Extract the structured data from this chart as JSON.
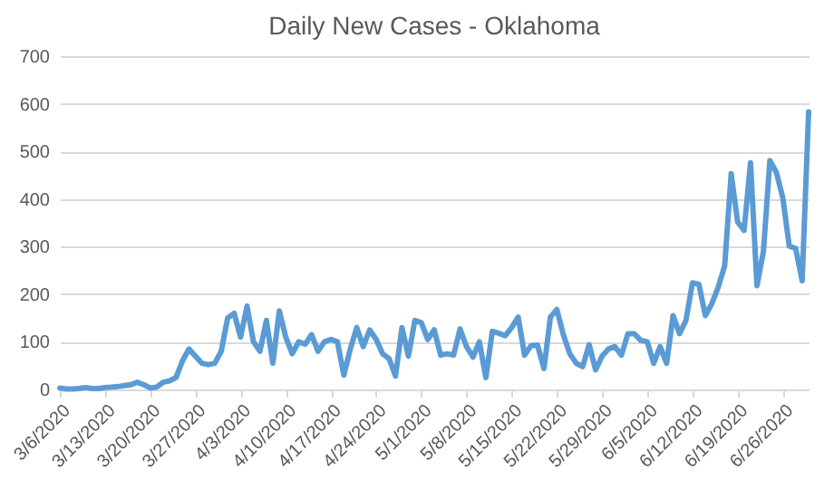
{
  "chart_data": {
    "type": "line",
    "title": "Daily New Cases - Oklahoma",
    "x": [
      "2020-03-06",
      "2020-03-07",
      "2020-03-08",
      "2020-03-09",
      "2020-03-10",
      "2020-03-11",
      "2020-03-12",
      "2020-03-13",
      "2020-03-14",
      "2020-03-15",
      "2020-03-16",
      "2020-03-17",
      "2020-03-18",
      "2020-03-19",
      "2020-03-20",
      "2020-03-21",
      "2020-03-22",
      "2020-03-23",
      "2020-03-24",
      "2020-03-25",
      "2020-03-26",
      "2020-03-27",
      "2020-03-28",
      "2020-03-29",
      "2020-03-30",
      "2020-03-31",
      "2020-04-01",
      "2020-04-02",
      "2020-04-03",
      "2020-04-04",
      "2020-04-05",
      "2020-04-06",
      "2020-04-07",
      "2020-04-08",
      "2020-04-09",
      "2020-04-10",
      "2020-04-11",
      "2020-04-12",
      "2020-04-13",
      "2020-04-14",
      "2020-04-15",
      "2020-04-16",
      "2020-04-17",
      "2020-04-18",
      "2020-04-19",
      "2020-04-20",
      "2020-04-21",
      "2020-04-22",
      "2020-04-23",
      "2020-04-24",
      "2020-04-25",
      "2020-04-26",
      "2020-04-27",
      "2020-04-28",
      "2020-04-29",
      "2020-04-30",
      "2020-05-01",
      "2020-05-02",
      "2020-05-03",
      "2020-05-04",
      "2020-05-05",
      "2020-05-06",
      "2020-05-07",
      "2020-05-08",
      "2020-05-09",
      "2020-05-10",
      "2020-05-11",
      "2020-05-12",
      "2020-05-13",
      "2020-05-14",
      "2020-05-15",
      "2020-05-16",
      "2020-05-17",
      "2020-05-18",
      "2020-05-19",
      "2020-05-20",
      "2020-05-21",
      "2020-05-22",
      "2020-05-23",
      "2020-05-24",
      "2020-05-25",
      "2020-05-26",
      "2020-05-27",
      "2020-05-28",
      "2020-05-29",
      "2020-05-30",
      "2020-05-31",
      "2020-06-01",
      "2020-06-02",
      "2020-06-03",
      "2020-06-04",
      "2020-06-05",
      "2020-06-06",
      "2020-06-07",
      "2020-06-08",
      "2020-06-09",
      "2020-06-10",
      "2020-06-11",
      "2020-06-12",
      "2020-06-13",
      "2020-06-14",
      "2020-06-15",
      "2020-06-16",
      "2020-06-17",
      "2020-06-18",
      "2020-06-19",
      "2020-06-20",
      "2020-06-21",
      "2020-06-22",
      "2020-06-23",
      "2020-06-24",
      "2020-06-25",
      "2020-06-26",
      "2020-06-27",
      "2020-06-28",
      "2020-06-29",
      "2020-06-30"
    ],
    "series": [
      {
        "color": "#5b9bd5",
        "values": [
          3,
          1,
          1,
          2,
          4,
          2,
          2,
          4,
          5,
          6,
          8,
          10,
          15,
          10,
          3,
          5,
          15,
          18,
          25,
          60,
          85,
          70,
          55,
          52,
          55,
          80,
          150,
          160,
          110,
          175,
          100,
          80,
          145,
          55,
          165,
          110,
          75,
          100,
          95,
          115,
          80,
          100,
          105,
          100,
          30,
          85,
          130,
          90,
          125,
          105,
          75,
          65,
          28,
          130,
          70,
          145,
          140,
          105,
          125,
          72,
          75,
          72,
          127,
          90,
          68,
          100,
          25,
          122,
          118,
          113,
          130,
          152,
          72,
          92,
          93,
          44,
          152,
          168,
          115,
          75,
          55,
          48,
          94,
          41,
          70,
          85,
          90,
          72,
          117,
          117,
          103,
          100,
          55,
          90,
          55,
          155,
          117,
          145,
          224,
          221,
          155,
          180,
          215,
          260,
          453,
          352,
          334,
          476,
          218,
          290,
          481,
          456,
          403,
          301,
          296,
          228,
          583
        ]
      }
    ],
    "xlim": [
      "2020-03-06",
      "2020-06-30"
    ],
    "xticks": [
      {
        "value": "2020-03-06",
        "label": "3/6/2020"
      },
      {
        "value": "2020-03-13",
        "label": "3/13/2020"
      },
      {
        "value": "2020-03-20",
        "label": "3/20/2020"
      },
      {
        "value": "2020-03-27",
        "label": "3/27/2020"
      },
      {
        "value": "2020-04-03",
        "label": "4/3/2020"
      },
      {
        "value": "2020-04-10",
        "label": "4/10/2020"
      },
      {
        "value": "2020-04-17",
        "label": "4/17/2020"
      },
      {
        "value": "2020-04-24",
        "label": "4/24/2020"
      },
      {
        "value": "2020-05-01",
        "label": "5/1/2020"
      },
      {
        "value": "2020-05-08",
        "label": "5/8/2020"
      },
      {
        "value": "2020-05-15",
        "label": "5/15/2020"
      },
      {
        "value": "2020-05-22",
        "label": "5/22/2020"
      },
      {
        "value": "2020-05-29",
        "label": "5/29/2020"
      },
      {
        "value": "2020-06-05",
        "label": "6/5/2020"
      },
      {
        "value": "2020-06-12",
        "label": "6/12/2020"
      },
      {
        "value": "2020-06-19",
        "label": "6/19/2020"
      },
      {
        "value": "2020-06-26",
        "label": "6/26/2020"
      }
    ],
    "ylim": [
      0,
      700
    ],
    "yticks": [
      0,
      100,
      200,
      300,
      400,
      500,
      600,
      700
    ],
    "grid": "y",
    "line_style": "solid",
    "marker": "none"
  }
}
